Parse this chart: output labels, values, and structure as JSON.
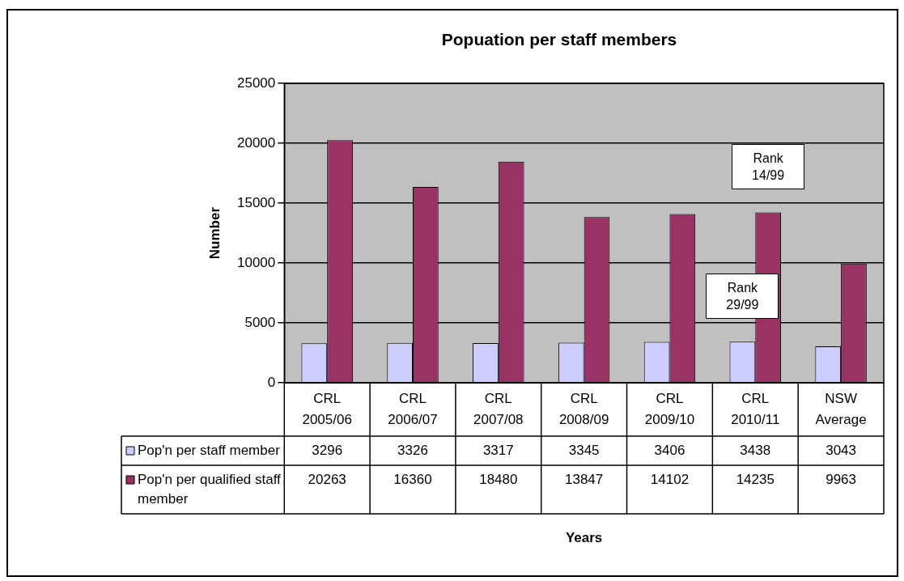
{
  "chart_data": {
    "type": "bar",
    "title": "Popuation per staff members",
    "ylabel": "Number",
    "categories": [
      "CRL 2005/06",
      "CRL 2006/07",
      "CRL 2007/08",
      "CRL 2008/09",
      "CRL 2009/10",
      "CRL 2010/11",
      "NSW Average"
    ],
    "series": [
      {
        "name": "Pop'n per staff member",
        "color": "#ccccff",
        "values": [
          3296,
          3326,
          3317,
          3345,
          3406,
          3438,
          3043
        ]
      },
      {
        "name": "Pop'n per qualified staff member",
        "color": "#993366",
        "values": [
          20263,
          16360,
          18480,
          13847,
          14102,
          14235,
          9963
        ]
      }
    ],
    "ylim": [
      0,
      25000
    ],
    "yticks": [
      0,
      5000,
      10000,
      15000,
      20000,
      25000
    ],
    "grid": "y",
    "legend": "bottom",
    "data_labels": true,
    "annotations": [
      "Years",
      {
        "text": "Rank 14/99",
        "x": "CRL 2010/11",
        "y": 14235
      },
      {
        "text": "Rank 29/99",
        "x": "CRL 2010/11",
        "y": 3438
      }
    ]
  }
}
